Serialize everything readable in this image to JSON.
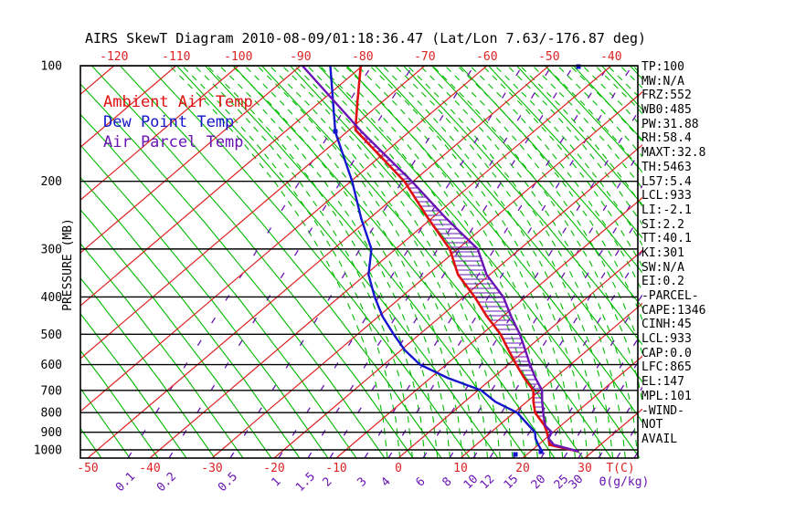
{
  "title": "AIRS SkewT Diagram 2010-08-09/01:18:36.47 (Lat/Lon 7.63/-176.87 deg)",
  "legend": {
    "items": [
      {
        "label": "Ambient Air Temp",
        "color": "#e01010"
      },
      {
        "label": "Dew Point Temp",
        "color": "#1414cc"
      },
      {
        "label": "Air Parcel Temp",
        "color": "#6a14b4"
      }
    ]
  },
  "axes": {
    "pressure_axis_label": "PRESSURE (MB)",
    "pressure_ticks": [
      "100",
      "200",
      "300",
      "400",
      "500",
      "600",
      "700",
      "800",
      "900",
      "1000"
    ],
    "top_temperature_ticks": [
      "-120",
      "-110",
      "-100",
      "-90",
      "-80",
      "-70",
      "-60",
      "-50",
      "-40"
    ],
    "bottom_temperature_ticks": [
      "-50",
      "-40",
      "-30",
      "-20",
      "-10",
      "0",
      "10",
      "20",
      "30"
    ],
    "temperature_axis_label": "T(C)",
    "mixing_ratio_ticks": [
      "0.1",
      "0.2",
      "0.5",
      "1",
      "1.5",
      "2",
      "3",
      "4",
      "6",
      "8",
      "10",
      "12",
      "15",
      "20",
      "25",
      "30"
    ],
    "mixing_ratio_axis_label": "Θ(g/kg)"
  },
  "stats_panel": {
    "lines": [
      "TP:100",
      "MW:N/A",
      "FRZ:552",
      "WB0:485",
      "PW:31.88",
      "RH:58.4",
      "MAXT:32.8",
      "TH:5463",
      "L57:5.4",
      "LCL:933",
      "LI:-2.1",
      "SI:2.2",
      "TT:40.1",
      "KI:301",
      "SW:N/A",
      "EI:0.2",
      "-PARCEL-",
      "CAPE:1346",
      "CINH:45",
      "LCL:933",
      "CAP:0.0",
      "LFC:865",
      "EL:147",
      "MPL:101",
      "-WIND-",
      "NOT",
      "AVAIL"
    ]
  },
  "chart_data": {
    "type": "line",
    "title": "AIRS SkewT Diagram",
    "y_axis_label": "PRESSURE (MB)",
    "x_axis_label": "T(C)",
    "y_scale": "log",
    "pressure_range_mb": [
      100,
      1050
    ],
    "bottom_axis_temp_range_c": [
      -50,
      38
    ],
    "top_axis_temp_range_c": [
      -120,
      -40
    ],
    "isotherm_step_c": 10,
    "grid": true,
    "legend_position": "top-left-inside",
    "series": [
      {
        "name": "Ambient Air Temp",
        "color": "#e01010",
        "width": 2.6,
        "points_pressure_mb_temp_c": [
          [
            100,
            -80.3
          ],
          [
            125,
            -73.8
          ],
          [
            147,
            -69.0
          ],
          [
            200,
            -51.4
          ],
          [
            250,
            -40.5
          ],
          [
            300,
            -31.3
          ],
          [
            350,
            -25.1
          ],
          [
            400,
            -18.2
          ],
          [
            450,
            -12.5
          ],
          [
            500,
            -7.0
          ],
          [
            550,
            -2.7
          ],
          [
            600,
            1.3
          ],
          [
            650,
            5.1
          ],
          [
            700,
            8.9
          ],
          [
            750,
            11.1
          ],
          [
            800,
            13.4
          ],
          [
            865,
            17.4
          ],
          [
            900,
            19.0
          ],
          [
            935,
            20.5
          ],
          [
            970,
            21.8
          ],
          [
            1010,
            27.8
          ]
        ]
      },
      {
        "name": "Dew Point Temp",
        "color": "#1414cc",
        "width": 2.4,
        "points_pressure_mb_temp_c": [
          [
            100,
            -85.2
          ],
          [
            149,
            -71.8
          ],
          [
            200,
            -59.8
          ],
          [
            250,
            -51.3
          ],
          [
            300,
            -43.9
          ],
          [
            350,
            -39.5
          ],
          [
            400,
            -34.3
          ],
          [
            450,
            -29.3
          ],
          [
            500,
            -24.2
          ],
          [
            550,
            -19.4
          ],
          [
            600,
            -14.2
          ],
          [
            650,
            -7.2
          ],
          [
            700,
            0.5
          ],
          [
            750,
            5.0
          ],
          [
            800,
            10.5
          ],
          [
            850,
            13.9
          ],
          [
            900,
            17.1
          ],
          [
            935,
            18.4
          ],
          [
            970,
            20.0
          ],
          [
            1010,
            21.9
          ]
        ]
      },
      {
        "name": "Air Parcel Temp",
        "color": "#6a14b4",
        "width": 2.4,
        "points_pressure_mb_temp_c": [
          [
            100,
            -89.7
          ],
          [
            149,
            -67.5
          ],
          [
            200,
            -50.2
          ],
          [
            250,
            -37.6
          ],
          [
            300,
            -26.8
          ],
          [
            350,
            -20.5
          ],
          [
            400,
            -13.6
          ],
          [
            450,
            -8.6
          ],
          [
            500,
            -3.9
          ],
          [
            550,
            0.0
          ],
          [
            600,
            3.5
          ],
          [
            650,
            6.9
          ],
          [
            700,
            10.3
          ],
          [
            750,
            12.5
          ],
          [
            800,
            14.7
          ],
          [
            865,
            17.5
          ],
          [
            900,
            19.8
          ],
          [
            933,
            20.4
          ],
          [
            970,
            22.5
          ],
          [
            1010,
            27.8
          ]
        ]
      }
    ],
    "cape_hatch_between": [
      "Air Parcel Temp",
      "Ambient Air Temp"
    ],
    "grid_colors": {
      "isotherm": "#dd2222",
      "dry_adiabat": "#00bb00",
      "moist_adiabat": "#00bb00",
      "mixing_ratio": "#6a14b4",
      "pressure_line": "#000000"
    }
  }
}
